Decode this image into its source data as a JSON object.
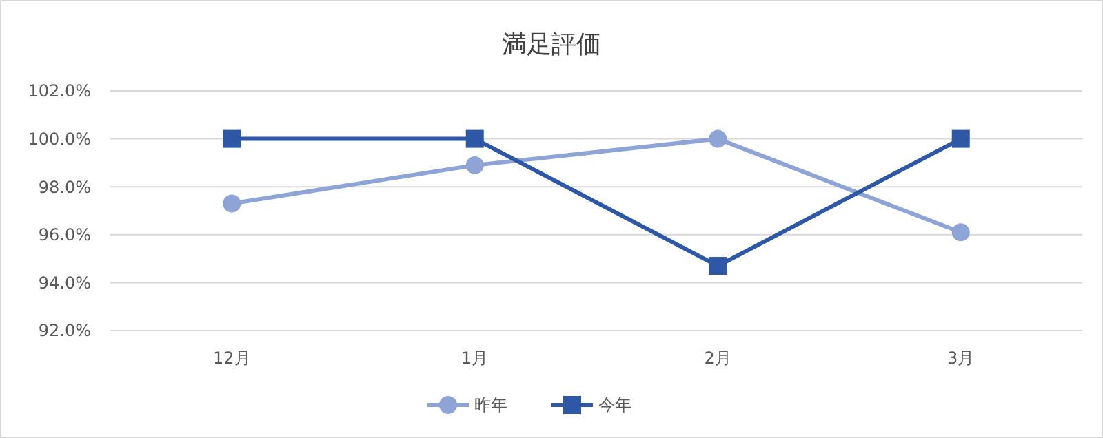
{
  "chart_data": {
    "type": "line",
    "title": "満足評価",
    "categories": [
      "12月",
      "1月",
      "2月",
      "3月"
    ],
    "series": [
      {
        "name": "昨年",
        "color": "#8fa4d6",
        "values": [
          97.3,
          98.9,
          100.0,
          96.1
        ],
        "marker": "circle"
      },
      {
        "name": "今年",
        "color": "#2e58a6",
        "values": [
          100.0,
          100.0,
          94.7,
          100.0
        ],
        "marker": "square"
      }
    ],
    "ylim": [
      92,
      102
    ],
    "yticks": [
      {
        "value": 92,
        "label": "92.0%"
      },
      {
        "value": 94,
        "label": "94.0%"
      },
      {
        "value": 96,
        "label": "96.0%"
      },
      {
        "value": 98,
        "label": "98.0%"
      },
      {
        "value": 100,
        "label": "100.0%"
      },
      {
        "value": 102,
        "label": "102.0%"
      }
    ],
    "grid": "y",
    "legend": "bottom"
  }
}
